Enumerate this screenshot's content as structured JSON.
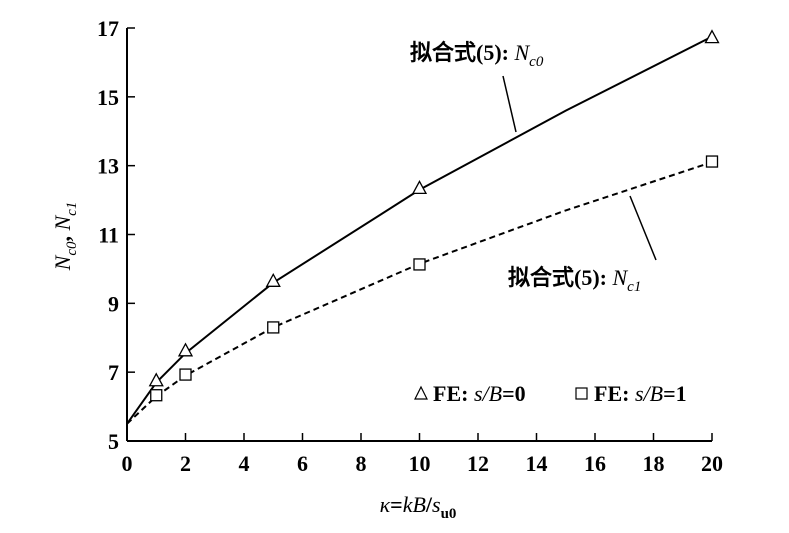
{
  "chart_data": {
    "type": "line",
    "xlabel": "κ=kB/s_u0",
    "ylabel": "N_c0, N_c1",
    "xlim": [
      0,
      20
    ],
    "ylim": [
      5,
      17
    ],
    "xticks": [
      0,
      2,
      4,
      6,
      8,
      10,
      12,
      14,
      16,
      18,
      20
    ],
    "yticks": [
      5,
      7,
      9,
      11,
      13,
      15,
      17
    ],
    "x_tick_labels": [
      "0",
      "2",
      "4",
      "6",
      "8",
      "10",
      "12",
      "14",
      "16",
      "18",
      "20"
    ],
    "y_tick_labels": [
      "5",
      "7",
      "9",
      "11",
      "13",
      "15",
      "17"
    ],
    "grid": false,
    "legend_position": "bottom-right",
    "series": [
      {
        "name": "FE: s/B=0",
        "marker": "triangle",
        "points": [
          [
            1,
            6.75
          ],
          [
            2,
            7.62
          ],
          [
            5,
            9.64
          ],
          [
            10,
            12.34
          ],
          [
            20,
            16.72
          ]
        ]
      },
      {
        "name": "FE: s/B=1",
        "marker": "square",
        "points": [
          [
            1,
            6.33
          ],
          [
            2,
            6.93
          ],
          [
            5,
            8.3
          ],
          [
            10,
            10.13
          ],
          [
            20,
            13.12
          ]
        ]
      },
      {
        "name": "拟合式(5): N_c0",
        "style": "solid",
        "points": [
          [
            0,
            5.5
          ],
          [
            1,
            6.7
          ],
          [
            2,
            7.55
          ],
          [
            5,
            9.6
          ],
          [
            10,
            12.3
          ],
          [
            15,
            14.6
          ],
          [
            20,
            16.75
          ]
        ]
      },
      {
        "name": "拟合式(5): N_c1",
        "style": "dashed",
        "points": [
          [
            0,
            5.5
          ],
          [
            1,
            6.3
          ],
          [
            2,
            6.9
          ],
          [
            5,
            8.3
          ],
          [
            10,
            10.15
          ],
          [
            15,
            11.7
          ],
          [
            20,
            13.1
          ]
        ]
      }
    ],
    "annotations": [
      {
        "prefix": "拟合式(5): ",
        "symbol": "N",
        "subscript": "c0"
      },
      {
        "prefix": "拟合式(5): ",
        "symbol": "N",
        "subscript": "c1"
      }
    ],
    "legend": [
      {
        "marker": "triangle",
        "text": "FE: ",
        "var": "s/B",
        "value": "=0"
      },
      {
        "marker": "square",
        "text": "FE: ",
        "var": "s/B",
        "value": "=1"
      }
    ],
    "axis_labels": {
      "x": {
        "kappa": "κ",
        "eq": "=",
        "kB": "kB",
        "slash": "/",
        "s": "s",
        "sub": "u0"
      },
      "y": {
        "n1": "N",
        "s1": "c0",
        "comma": ", ",
        "n2": "N",
        "s2": "c1"
      }
    }
  }
}
